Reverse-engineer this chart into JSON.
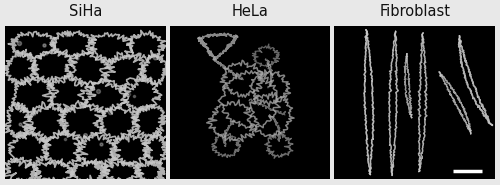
{
  "panels": [
    {
      "label": "SiHa"
    },
    {
      "label": "HeLa"
    },
    {
      "label": "Fibroblast"
    }
  ],
  "fig_background": "#e8e8e8",
  "panel_background": "#000000",
  "cell_color_siha": "#c8c8c8",
  "cell_color_hela": "#aaaaaa",
  "cell_color_fibro": "#cccccc",
  "label_color": "#111111",
  "label_fontsize": 10.5,
  "scale_bar_color": "#ffffff",
  "fig_width": 5.0,
  "fig_height": 1.85,
  "dpi": 100
}
